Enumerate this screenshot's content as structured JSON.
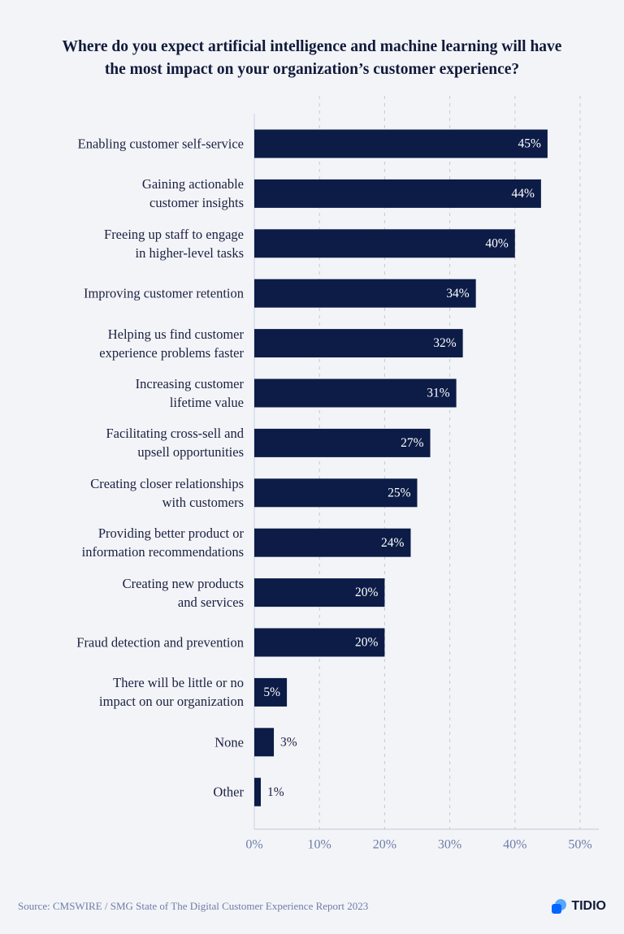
{
  "chart_data": {
    "type": "bar",
    "orientation": "horizontal",
    "title": "Where do you expect artificial intelligence and machine learning will have\nthe most impact on your organization’s customer experience?",
    "categories": [
      "Enabling customer self-service",
      "Gaining actionable\ncustomer insights",
      "Freeing up staff to engage\nin higher-level tasks",
      "Improving customer retention",
      "Helping us find customer\nexperience problems faster",
      "Increasing customer\nlifetime value",
      "Facilitating cross-sell and\nupsell opportunities",
      "Creating closer relationships\nwith customers",
      "Providing better product or\ninformation recommendations",
      "Creating new products\nand services",
      "Fraud detection and prevention",
      "There will be little or no\nimpact on our organization",
      "None",
      "Other"
    ],
    "values": [
      45,
      44,
      40,
      34,
      32,
      31,
      27,
      25,
      24,
      20,
      20,
      5,
      3,
      1
    ],
    "value_labels": [
      "45%",
      "44%",
      "40%",
      "34%",
      "32%",
      "31%",
      "27%",
      "25%",
      "24%",
      "20%",
      "20%",
      "5%",
      "3%",
      "1%"
    ],
    "color": "#0c1c47",
    "xlim": [
      0,
      50
    ],
    "xticks": [
      {
        "value": 0,
        "label": "0%"
      },
      {
        "value": 10,
        "label": "10%"
      },
      {
        "value": 20,
        "label": "20%"
      },
      {
        "value": 30,
        "label": "30%"
      },
      {
        "value": 40,
        "label": "40%"
      },
      {
        "value": 50,
        "label": "50%"
      }
    ],
    "grid": true,
    "source": "Source: CMSWIRE / SMG State of The Digital Customer Experience Report 2023",
    "brand": "TIDIO"
  }
}
